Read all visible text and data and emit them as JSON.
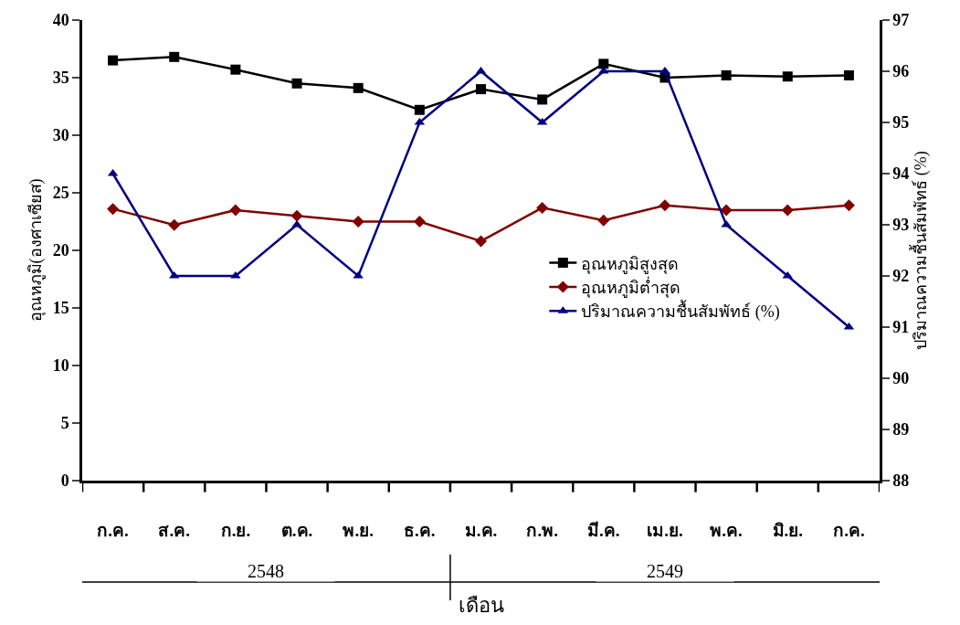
{
  "chart_data": {
    "type": "line",
    "xlabel": "เดือน",
    "ylabel": "อุณหภูมิ(องศาเซียส)",
    "y2label": "ปริมาณความชื้นสัมพัทธ์ (%)",
    "categories": [
      "ก.ค.",
      "ส.ค.",
      "ก.ย.",
      "ต.ค.",
      "พ.ย.",
      "ธ.ค.",
      "ม.ค.",
      "ก.พ.",
      "มี.ค.",
      "เม.ย.",
      "พ.ค.",
      "มิ.ย.",
      "ก.ค."
    ],
    "series": [
      {
        "name": "อุณหภูมิสูงสุด",
        "color": "#000000",
        "marker": "square",
        "values": [
          36.5,
          36.8,
          35.7,
          34.5,
          34.1,
          32.2,
          34.0,
          33.1,
          36.2,
          35.0,
          35.2,
          35.1,
          35.2
        ]
      },
      {
        "name": "อุณหภูมิต่ำสุด",
        "color": "#800000",
        "marker": "diamond",
        "values": [
          23.6,
          22.2,
          23.5,
          23.0,
          22.5,
          22.5,
          20.8,
          23.7,
          22.6,
          23.9,
          23.5,
          23.5,
          23.9
        ]
      },
      {
        "name": "ปริมาณความชื้นสัมพัทธ์ (%)",
        "color": "#000080",
        "marker": "triangle",
        "axis": "y2",
        "values": [
          94,
          92,
          92,
          93,
          92,
          95,
          96,
          95,
          96,
          96,
          93,
          92,
          91
        ]
      }
    ],
    "ylim": [
      0,
      40
    ],
    "yticks": [
      0,
      5,
      10,
      15,
      20,
      25,
      30,
      35,
      40
    ],
    "y2lim": [
      88,
      97
    ],
    "y2ticks": [
      88,
      89,
      90,
      91,
      92,
      93,
      94,
      95,
      96,
      97
    ],
    "annotations": [
      "2548",
      "2549"
    ],
    "legend": "right",
    "line_style": "solid"
  }
}
